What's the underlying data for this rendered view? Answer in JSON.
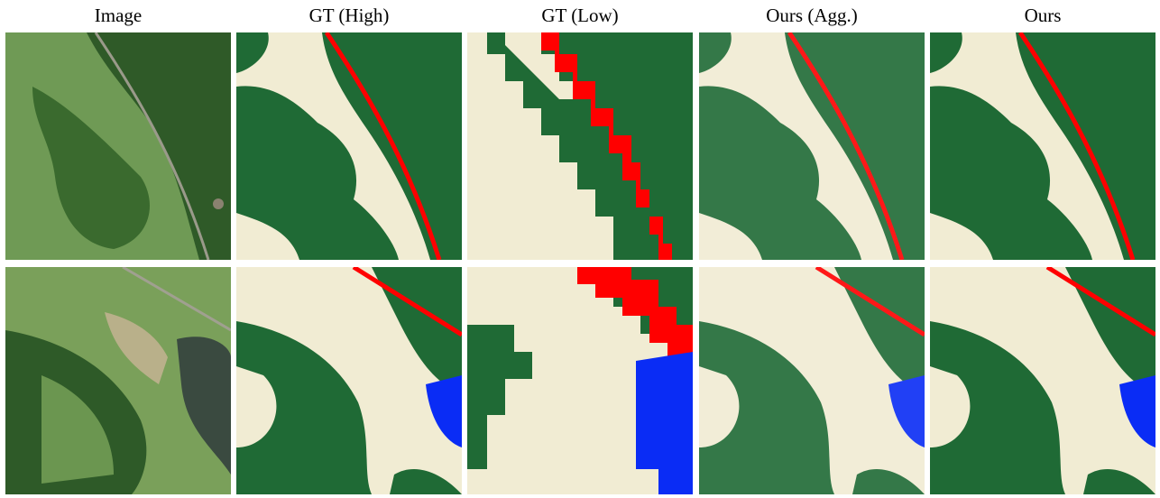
{
  "headers": [
    "Image",
    "GT (High)",
    "GT (Low)",
    "Ours (Agg.)",
    "Ours"
  ]
}
